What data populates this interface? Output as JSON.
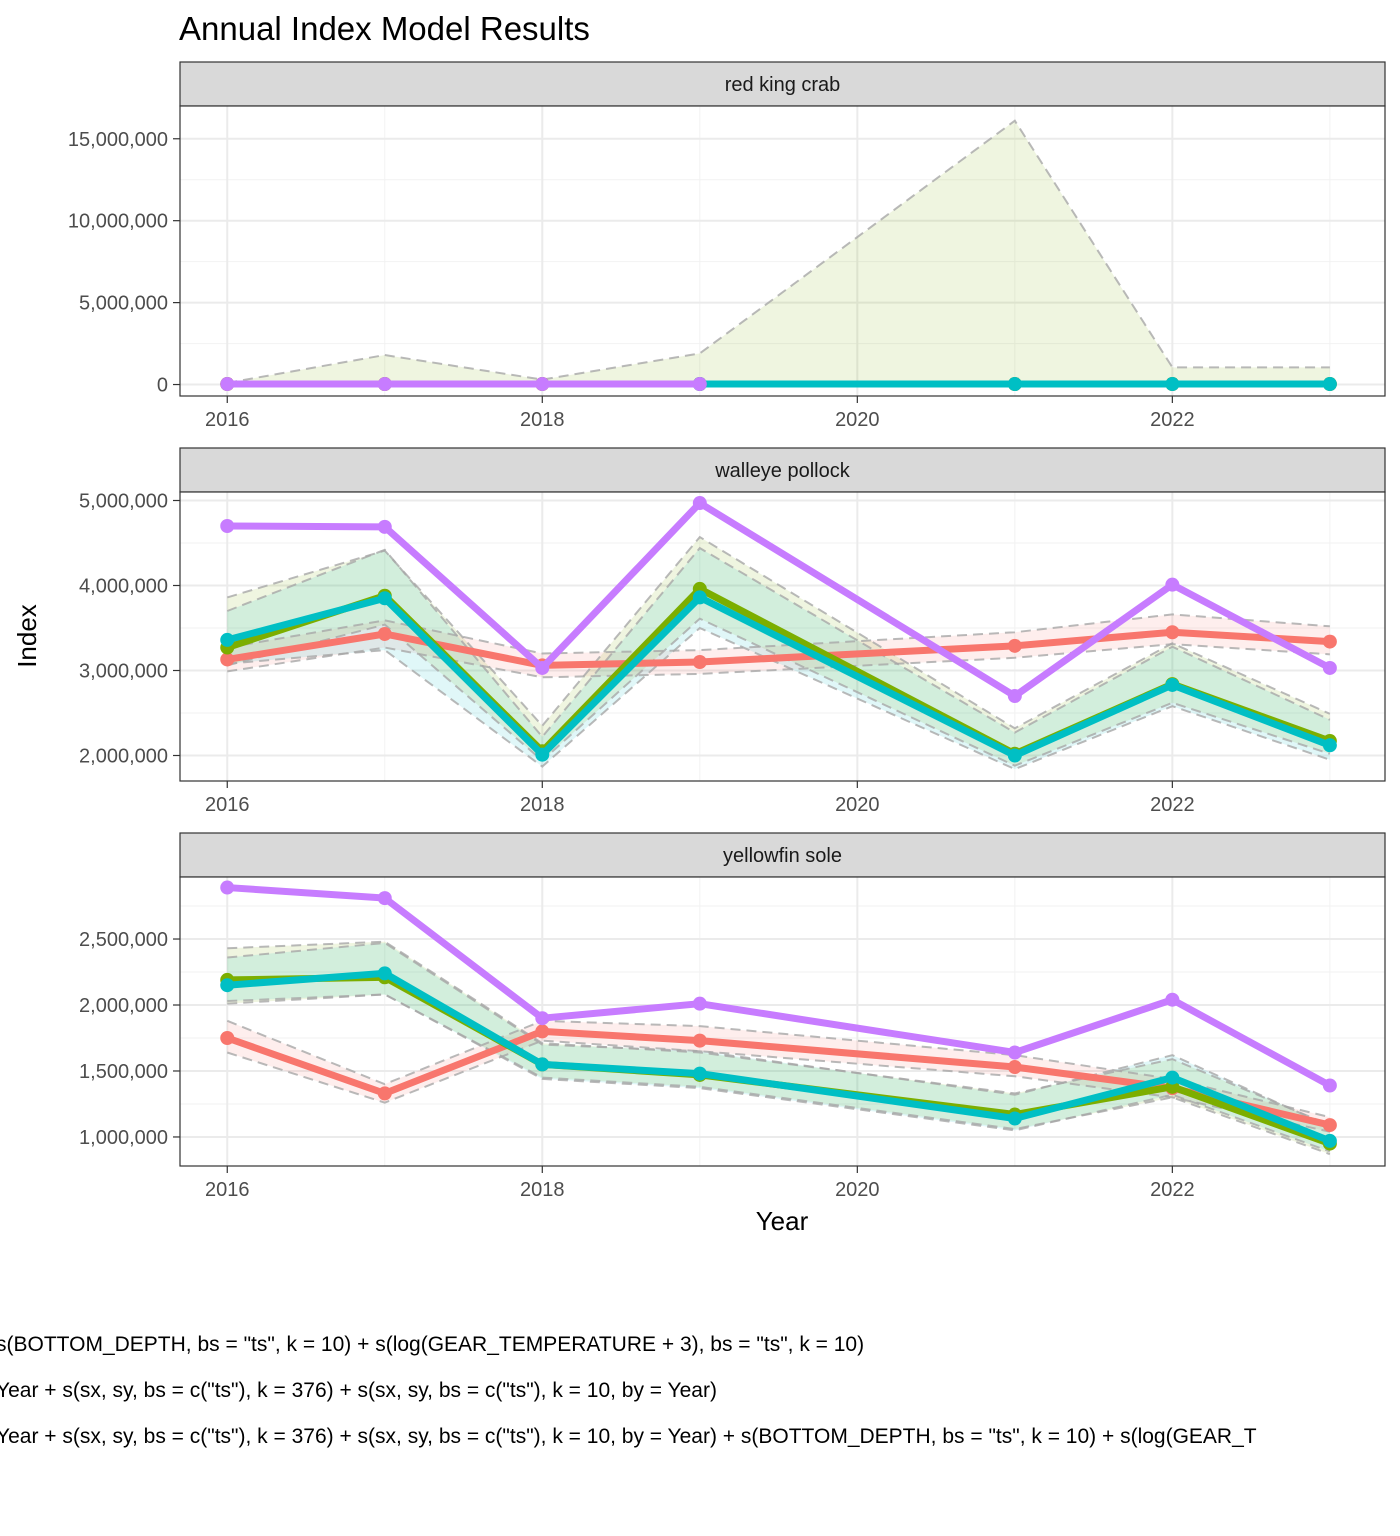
{
  "title": "Annual Index Model Results",
  "chart_data": {
    "type": "line",
    "xlabel": "Year",
    "ylabel": "Index",
    "x": [
      2016,
      2017,
      2018,
      2019,
      2020,
      2021,
      2022,
      2023
    ],
    "x_ticks": [
      2016,
      2018,
      2020,
      2022
    ],
    "x_tick_labels": [
      "2016",
      "2018",
      "2020",
      "2022"
    ],
    "xlim": [
      2015.7,
      2023.35
    ],
    "grid": true,
    "colors": {
      "red": "#F8766D",
      "green": "#7CAE00",
      "teal": "#00BFC4",
      "purple": "#C77CFF"
    },
    "panels": [
      {
        "title": "red king crab",
        "ylim": [
          -700000,
          17000000
        ],
        "y_ticks": [
          0,
          5000000,
          10000000,
          15000000
        ],
        "y_tick_labels": [
          "0",
          "5,000,000",
          "10,000,000",
          "15,000,000"
        ],
        "series": [
          {
            "color": "#F8766D",
            "years": [
              2016,
              2017,
              2018,
              2019,
              2021,
              2022,
              2023
            ],
            "values": [
              30000,
              30000,
              30000,
              30000,
              30000,
              30000,
              30000
            ],
            "lower": null,
            "upper": null
          },
          {
            "color": "#7CAE00",
            "years": [
              2016,
              2017,
              2018,
              2019,
              2021,
              2022,
              2023
            ],
            "values": [
              30000,
              30000,
              30000,
              30000,
              30000,
              30000,
              30000
            ],
            "lower": [
              0,
              0,
              0,
              0,
              0,
              0,
              0
            ],
            "upper": [
              100000,
              1800000,
              300000,
              1900000,
              16100000,
              1050000,
              1050000
            ]
          },
          {
            "color": "#00BFC4",
            "years": [
              2019,
              2021,
              2022,
              2023
            ],
            "values": [
              30000,
              30000,
              30000,
              30000
            ],
            "lower": null,
            "upper": null
          },
          {
            "color": "#C77CFF",
            "years": [
              2016,
              2017,
              2018,
              2019
            ],
            "values": [
              30000,
              30000,
              30000,
              30000
            ],
            "lower": null,
            "upper": null
          }
        ]
      },
      {
        "title": "walleye pollock",
        "ylim": [
          1700000,
          5100000
        ],
        "y_ticks": [
          2000000,
          3000000,
          4000000,
          5000000
        ],
        "y_tick_labels": [
          "2,000,000",
          "3,000,000",
          "4,000,000",
          "5,000,000"
        ],
        "series": [
          {
            "color": "#F8766D",
            "years": [
              2016,
              2017,
              2018,
              2019,
              2021,
              2022,
              2023
            ],
            "values": [
              3130000,
              3430000,
              3060000,
              3100000,
              3290000,
              3450000,
              3340000
            ],
            "lower": [
              2990000,
              3270000,
              2920000,
              2960000,
              3150000,
              3310000,
              3190000
            ],
            "upper": [
              3270000,
              3590000,
              3200000,
              3240000,
              3450000,
              3660000,
              3520000
            ]
          },
          {
            "color": "#7CAE00",
            "years": [
              2016,
              2017,
              2018,
              2019,
              2021,
              2022,
              2023
            ],
            "values": [
              3270000,
              3880000,
              2050000,
              3960000,
              2020000,
              2840000,
              2170000
            ],
            "lower": [
              3060000,
              3540000,
              1940000,
              3610000,
              1880000,
              2620000,
              2020000
            ],
            "upper": [
              3860000,
              4410000,
              2350000,
              4570000,
              2320000,
              3320000,
              2490000
            ]
          },
          {
            "color": "#00BFC4",
            "years": [
              2016,
              2017,
              2018,
              2019,
              2021,
              2022,
              2023
            ],
            "values": [
              3360000,
              3850000,
              2010000,
              3860000,
              2000000,
              2830000,
              2120000
            ],
            "lower": [
              3080000,
              3240000,
              1870000,
              3500000,
              1840000,
              2580000,
              1950000
            ],
            "upper": [
              3700000,
              4420000,
              2220000,
              4440000,
              2270000,
              3280000,
              2420000
            ]
          },
          {
            "color": "#C77CFF",
            "years": [
              2016,
              2017,
              2018,
              2019,
              2021,
              2022,
              2023
            ],
            "values": [
              4700000,
              4690000,
              3030000,
              4970000,
              2700000,
              4010000,
              3030000
            ],
            "lower": null,
            "upper": null
          }
        ]
      },
      {
        "title": "yellowfin sole",
        "ylim": [
          780000,
          2970000
        ],
        "y_ticks": [
          1000000,
          1500000,
          2000000,
          2500000
        ],
        "y_tick_labels": [
          "1,000,000",
          "1,500,000",
          "2,000,000",
          "2,500,000"
        ],
        "series": [
          {
            "color": "#F8766D",
            "years": [
              2016,
              2017,
              2018,
              2019,
              2021,
              2022,
              2023
            ],
            "values": [
              1750000,
              1330000,
              1800000,
              1730000,
              1530000,
              1370000,
              1090000
            ],
            "lower": [
              1640000,
              1260000,
              1730000,
              1650000,
              1460000,
              1300000,
              1040000
            ],
            "upper": [
              1880000,
              1400000,
              1880000,
              1840000,
              1620000,
              1440000,
              1150000
            ]
          },
          {
            "color": "#7CAE00",
            "years": [
              2016,
              2017,
              2018,
              2019,
              2021,
              2022,
              2023
            ],
            "values": [
              2190000,
              2210000,
              1550000,
              1470000,
              1170000,
              1380000,
              950000
            ],
            "lower": [
              2010000,
              2080000,
              1450000,
              1380000,
              1060000,
              1300000,
              870000
            ],
            "upper": [
              2430000,
              2480000,
              1710000,
              1640000,
              1330000,
              1590000,
              1090000
            ]
          },
          {
            "color": "#00BFC4",
            "years": [
              2016,
              2017,
              2018,
              2019,
              2021,
              2022,
              2023
            ],
            "values": [
              2150000,
              2240000,
              1550000,
              1480000,
              1140000,
              1450000,
              970000
            ],
            "lower": [
              2030000,
              2080000,
              1440000,
              1370000,
              1050000,
              1320000,
              890000
            ],
            "upper": [
              2360000,
              2470000,
              1700000,
              1650000,
              1320000,
              1620000,
              1080000
            ]
          },
          {
            "color": "#C77CFF",
            "years": [
              2016,
              2017,
              2018,
              2019,
              2021,
              2022,
              2023
            ],
            "values": [
              2890000,
              2810000,
              1900000,
              2010000,
              1640000,
              2040000,
              1390000
            ],
            "lower": null,
            "upper": null
          }
        ]
      }
    ]
  },
  "legend_text": [
    "s(BOTTOM_DEPTH, bs = \"ts\", k = 10) + s(log(GEAR_TEMPERATURE + 3), bs = \"ts\", k = 10)",
    "Year + s(sx, sy, bs = c(\"ts\"), k = 376) + s(sx, sy, bs = c(\"ts\"), k = 10, by = Year)",
    "Year + s(sx, sy, bs = c(\"ts\"), k = 376) + s(sx, sy, bs = c(\"ts\"), k = 10, by = Year) + s(BOTTOM_DEPTH, bs = \"ts\", k = 10) + s(log(GEAR_T"
  ]
}
